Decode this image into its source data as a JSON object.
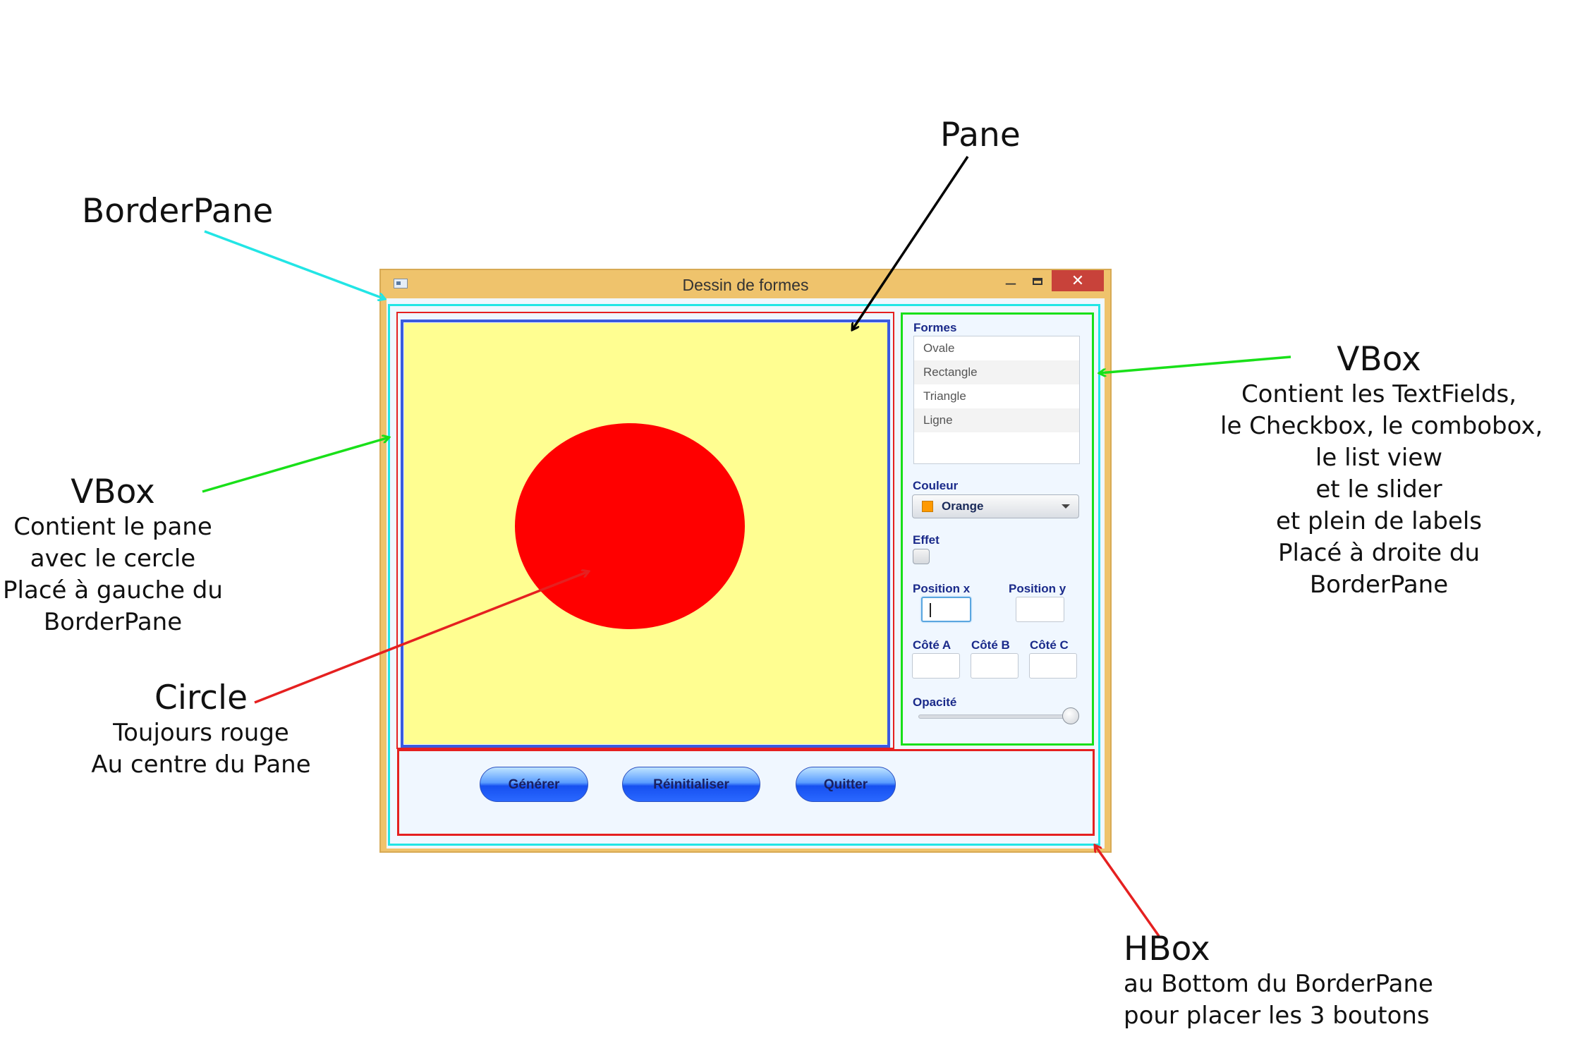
{
  "window": {
    "title": "Dessin de formes",
    "minimize_glyph": "–",
    "close_glyph": "✕"
  },
  "panel": {
    "shapes_label": "Formes",
    "shapes": [
      "Ovale",
      "Rectangle",
      "Triangle",
      "Ligne"
    ],
    "color_label": "Couleur",
    "color_value": "Orange",
    "color_swatch": "#ff9900",
    "effect_label": "Effet",
    "pos_x_label": "Position x",
    "pos_y_label": "Position y",
    "side_a_label": "Côté A",
    "side_b_label": "Côté B",
    "side_c_label": "Côté C",
    "opacity_label": "Opacité",
    "opacity_value": 1.0
  },
  "buttons": {
    "generate": "Générer",
    "reset": "Réinitialiser",
    "quit": "Quitter"
  },
  "circle": {
    "color": "#ff0000"
  },
  "annotations": {
    "borderpane": {
      "title": "BorderPane"
    },
    "pane": {
      "title": "Pane"
    },
    "vbox_left": {
      "title": "VBox",
      "lines": [
        "Contient le pane",
        "avec le cercle",
        "Placé à gauche du",
        "BorderPane"
      ]
    },
    "vbox_right": {
      "title": "VBox",
      "lines": [
        "Contient les TextFields,",
        "le Checkbox, le combobox,",
        "le list view",
        "et le slider",
        "et plein de labels",
        "Placé à droite du",
        "BorderPane"
      ]
    },
    "circle": {
      "title": "Circle",
      "lines": [
        "Toujours rouge",
        "Au centre du Pane"
      ]
    },
    "hbox": {
      "title": "HBox",
      "lines": [
        "au Bottom du BorderPane",
        "pour placer les 3 boutons"
      ]
    }
  },
  "colors": {
    "borderpane_outline": "#22e5e5",
    "vbox_outline": "#19e019",
    "pane_outline": "#3a5be0",
    "hbox_outline": "#e52020",
    "pane_background": "#fffe91"
  }
}
